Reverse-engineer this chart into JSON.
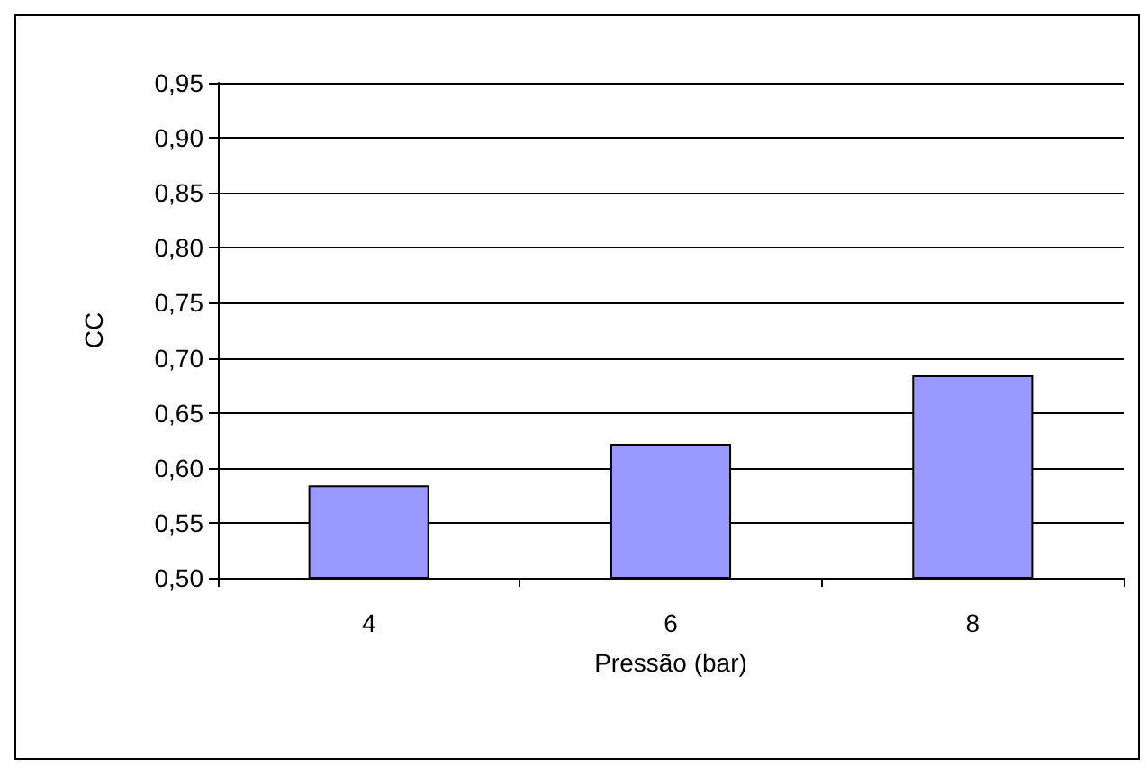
{
  "chart_data": {
    "type": "bar",
    "xlabel": "Pressão (bar)",
    "ylabel": "CC",
    "categories": [
      "4",
      "6",
      "8"
    ],
    "values": [
      0.584,
      0.622,
      0.684
    ],
    "color": "#9999ff",
    "ylim": [
      0.5,
      0.95
    ],
    "yticks": [
      {
        "value": 0.5,
        "label": "0,50"
      },
      {
        "value": 0.55,
        "label": "0,55"
      },
      {
        "value": 0.6,
        "label": "0,60"
      },
      {
        "value": 0.65,
        "label": "0,65"
      },
      {
        "value": 0.7,
        "label": "0,70"
      },
      {
        "value": 0.75,
        "label": "0,75"
      },
      {
        "value": 0.8,
        "label": "0,80"
      },
      {
        "value": 0.85,
        "label": "0,85"
      },
      {
        "value": 0.9,
        "label": "0,90"
      },
      {
        "value": 0.95,
        "label": "0,95"
      }
    ],
    "grid": "y"
  }
}
